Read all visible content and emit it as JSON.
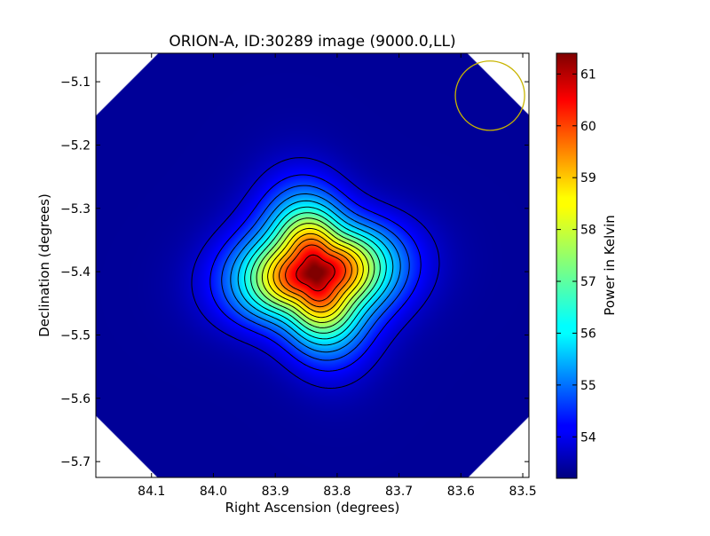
{
  "chart_data": {
    "type": "heatmap",
    "title": "ORION-A, ID:30289 image (9000.0,LL)",
    "xlabel": "Right Ascension (degrees)",
    "ylabel": "Declination (degrees)",
    "xlim": [
      84.19,
      83.49
    ],
    "ylim": [
      -5.725,
      -5.055
    ],
    "x_ticks": [
      {
        "value": 84.1,
        "label": "84.1"
      },
      {
        "value": 84.0,
        "label": "84.0"
      },
      {
        "value": 83.9,
        "label": "83.9"
      },
      {
        "value": 83.8,
        "label": "83.8"
      },
      {
        "value": 83.7,
        "label": "83.7"
      },
      {
        "value": 83.6,
        "label": "83.6"
      },
      {
        "value": 83.5,
        "label": "83.5"
      }
    ],
    "y_ticks": [
      {
        "value": -5.1,
        "label": "−5.1"
      },
      {
        "value": -5.2,
        "label": "−5.2"
      },
      {
        "value": -5.3,
        "label": "−5.3"
      },
      {
        "value": -5.4,
        "label": "−5.4"
      },
      {
        "value": -5.5,
        "label": "−5.5"
      },
      {
        "value": -5.6,
        "label": "−5.6"
      },
      {
        "value": -5.7,
        "label": "−5.7"
      }
    ],
    "colorbar": {
      "label": "Power in Kelvin",
      "min": 53.2,
      "max": 61.4,
      "ticks": [
        {
          "value": 54,
          "label": "54"
        },
        {
          "value": 55,
          "label": "55"
        },
        {
          "value": 56,
          "label": "56"
        },
        {
          "value": 57,
          "label": "57"
        },
        {
          "value": 58,
          "label": "58"
        },
        {
          "value": 59,
          "label": "59"
        },
        {
          "value": 60,
          "label": "60"
        },
        {
          "value": 61,
          "label": "61"
        }
      ],
      "colormap": "jet"
    },
    "peak": {
      "ra": 83.835,
      "dec": -5.402,
      "value": 61.4
    },
    "background_level": 53.4,
    "contour_levels": [
      53.8,
      54.3,
      54.8,
      55.3,
      55.8,
      56.3,
      56.8,
      57.3,
      57.8,
      58.3,
      58.8,
      59.3,
      59.8,
      60.6
    ],
    "beam_circle": {
      "ra": 83.553,
      "dec": -5.122,
      "radius_deg": 0.056,
      "color": "#c8b400"
    },
    "colors": {
      "axes": "#000000",
      "contours": "#000000",
      "beam": "#c8b400"
    }
  }
}
